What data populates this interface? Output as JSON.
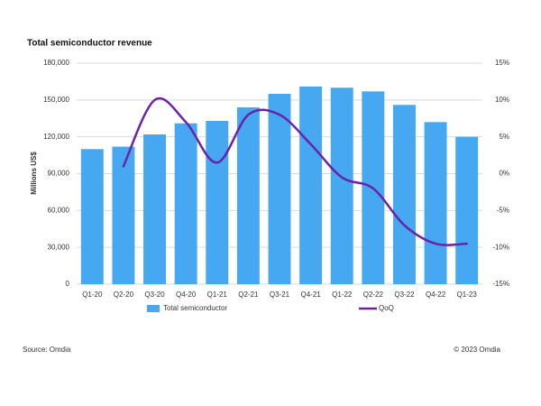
{
  "chart_data": {
    "type": "bar-line",
    "title": "Total semiconductor revenue",
    "y_label": "Millions US$",
    "source": "Source: Omdia",
    "copyright": "© 2023 Omdia",
    "categories": [
      "Q1-20",
      "Q2-20",
      "Q3-20",
      "Q4-20",
      "Q1-21",
      "Q2-21",
      "Q3-21",
      "Q4-21",
      "Q1-22",
      "Q2-22",
      "Q3-22",
      "Q4-22",
      "Q1-23"
    ],
    "series": [
      {
        "name": "Total semiconductor",
        "type": "bar",
        "color": "#45a8f0",
        "values": [
          110000,
          112000,
          122000,
          131000,
          133000,
          144000,
          155000,
          161000,
          160000,
          157000,
          146000,
          132000,
          120000
        ]
      },
      {
        "name": "QoQ",
        "type": "line",
        "axis": "y2",
        "color": "#6a22a8",
        "values": [
          null,
          1,
          10,
          7,
          1.5,
          8,
          8,
          4,
          -0.5,
          -2,
          -7,
          -9.5,
          -9.5
        ]
      }
    ],
    "ylim": [
      0,
      180000
    ],
    "yticks": [
      {
        "value": 0,
        "label": "0"
      },
      {
        "value": 30000,
        "label": "30,000"
      },
      {
        "value": 60000,
        "label": "60,000"
      },
      {
        "value": 90000,
        "label": "90,000"
      },
      {
        "value": 120000,
        "label": "120,000"
      },
      {
        "value": 150000,
        "label": "150,000"
      },
      {
        "value": 180000,
        "label": "180,000"
      }
    ],
    "y2lim": [
      -15,
      15
    ],
    "y2ticks": [
      {
        "value": -15,
        "label": "-15%"
      },
      {
        "value": -10,
        "label": "-10%"
      },
      {
        "value": -5,
        "label": "-5%"
      },
      {
        "value": 0,
        "label": "0%"
      },
      {
        "value": 5,
        "label": "5%"
      },
      {
        "value": 10,
        "label": "10%"
      },
      {
        "value": 15,
        "label": "15%"
      }
    ],
    "grid": true,
    "legend": "bottom"
  }
}
